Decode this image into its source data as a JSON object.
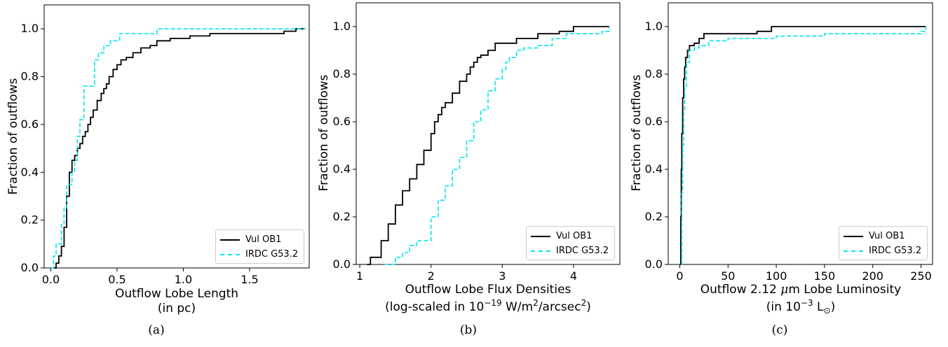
{
  "chart_data": [
    {
      "type": "line",
      "panel": "(a)",
      "xlabel_line1": "Outflow Lobe Length",
      "xlabel_line2": "(in pc)",
      "ylabel": "Fraction of outflows",
      "xlim": [
        -0.05,
        1.95
      ],
      "ylim": [
        0,
        1.1
      ],
      "xticks": [
        0.0,
        0.5,
        1.0,
        1.5
      ],
      "xtick_labels": [
        "0.0",
        "0.5",
        "1.0",
        "1.5"
      ],
      "yticks": [
        0.0,
        0.2,
        0.4,
        0.6,
        0.8,
        1.0
      ],
      "ytick_labels": [
        "0.0",
        "0.2",
        "0.4",
        "0.6",
        "0.8",
        "1.0"
      ],
      "legend_position": "lower-right",
      "series": [
        {
          "name": "Vul OB1",
          "color": "#000000",
          "style": "solid",
          "x": [
            0.02,
            0.04,
            0.06,
            0.08,
            0.1,
            0.12,
            0.14,
            0.16,
            0.18,
            0.2,
            0.22,
            0.24,
            0.26,
            0.28,
            0.3,
            0.32,
            0.35,
            0.38,
            0.4,
            0.42,
            0.44,
            0.47,
            0.5,
            0.53,
            0.57,
            0.62,
            0.68,
            0.75,
            0.8,
            0.9,
            1.0,
            1.05,
            1.2,
            1.5,
            1.7,
            1.76,
            1.8,
            1.85,
            1.88,
            1.92
          ],
          "y": [
            0.0,
            0.02,
            0.05,
            0.09,
            0.17,
            0.3,
            0.4,
            0.45,
            0.47,
            0.5,
            0.52,
            0.55,
            0.57,
            0.6,
            0.63,
            0.66,
            0.7,
            0.73,
            0.75,
            0.77,
            0.8,
            0.83,
            0.85,
            0.87,
            0.88,
            0.9,
            0.92,
            0.93,
            0.95,
            0.96,
            0.96,
            0.97,
            0.98,
            0.98,
            0.98,
            0.99,
            0.99,
            1.0,
            1.0,
            1.0
          ]
        },
        {
          "name": "IRDC G53.2",
          "color": "#00e5ee",
          "style": "dashed",
          "x": [
            0.0,
            0.02,
            0.04,
            0.08,
            0.1,
            0.12,
            0.16,
            0.18,
            0.2,
            0.22,
            0.25,
            0.33,
            0.36,
            0.4,
            0.45,
            0.52,
            0.55,
            0.8,
            1.8,
            1.92
          ],
          "y": [
            0.0,
            0.05,
            0.1,
            0.18,
            0.25,
            0.35,
            0.4,
            0.45,
            0.55,
            0.62,
            0.76,
            0.87,
            0.9,
            0.93,
            0.95,
            0.98,
            0.98,
            1.0,
            1.0,
            1.0
          ]
        }
      ]
    },
    {
      "type": "line",
      "panel": "(b)",
      "xlabel_line1": "Outflow Lobe Flux Densities",
      "xlabel_line2_pre": "(log-scaled in 10",
      "xlabel_line2_sup1": "−19",
      "xlabel_line2_mid": " W/m",
      "xlabel_line2_sup2": "2",
      "xlabel_line2_post": "/arcsec",
      "xlabel_line2_sup3": "2",
      "xlabel_line2_end": ")",
      "ylabel": "Fraction of outflows",
      "xlim": [
        0.95,
        4.65
      ],
      "ylim": [
        0,
        1.1
      ],
      "xticks": [
        1,
        2,
        3,
        4
      ],
      "xtick_labels": [
        "1",
        "2",
        "3",
        "4"
      ],
      "yticks": [
        0.0,
        0.2,
        0.4,
        0.6,
        0.8,
        1.0
      ],
      "ytick_labels": [
        "0.0",
        "0.2",
        "0.4",
        "0.6",
        "0.8",
        "1.0"
      ],
      "legend_position": "lower-right",
      "series": [
        {
          "name": "Vul OB1",
          "color": "#000000",
          "style": "solid",
          "x": [
            1.1,
            1.15,
            1.3,
            1.4,
            1.5,
            1.6,
            1.7,
            1.8,
            1.9,
            2.0,
            2.05,
            2.1,
            2.15,
            2.2,
            2.3,
            2.4,
            2.5,
            2.55,
            2.6,
            2.65,
            2.7,
            2.8,
            2.9,
            3.1,
            3.2,
            3.3,
            3.5,
            3.65,
            3.8,
            4.0,
            4.5
          ],
          "y": [
            0.0,
            0.03,
            0.1,
            0.17,
            0.25,
            0.31,
            0.36,
            0.42,
            0.48,
            0.55,
            0.6,
            0.63,
            0.66,
            0.68,
            0.72,
            0.77,
            0.8,
            0.83,
            0.85,
            0.87,
            0.88,
            0.9,
            0.93,
            0.93,
            0.95,
            0.95,
            0.97,
            0.97,
            0.98,
            1.0,
            1.0
          ]
        },
        {
          "name": "IRDC G53.2",
          "color": "#00e5ee",
          "style": "dashed",
          "x": [
            1.35,
            1.5,
            1.6,
            1.7,
            1.8,
            2.0,
            2.1,
            2.2,
            2.3,
            2.4,
            2.5,
            2.6,
            2.7,
            2.8,
            2.9,
            3.0,
            3.05,
            3.1,
            3.2,
            3.3,
            3.5,
            3.7,
            3.9,
            4.0,
            4.4,
            4.5
          ],
          "y": [
            0.0,
            0.03,
            0.05,
            0.08,
            0.1,
            0.2,
            0.27,
            0.33,
            0.4,
            0.45,
            0.52,
            0.6,
            0.65,
            0.73,
            0.78,
            0.82,
            0.85,
            0.87,
            0.9,
            0.91,
            0.92,
            0.95,
            0.97,
            0.97,
            0.98,
            1.0
          ]
        }
      ]
    },
    {
      "type": "line",
      "panel": "(c)",
      "xlabel_line1_pre": "Outflow 2.12 ",
      "xlabel_line1_mu": "μ",
      "xlabel_line1_post": "m Lobe Luminosity",
      "xlabel_line2_pre": "(in 10",
      "xlabel_line2_sup": "−3",
      "xlabel_line2_post": " L",
      "xlabel_line2_sub": "⊙",
      "xlabel_line2_end": ")",
      "ylabel": "Fraction of outflows",
      "xlim": [
        -12,
        262
      ],
      "ylim": [
        0,
        1.1
      ],
      "xticks": [
        0,
        50,
        100,
        150,
        200,
        250
      ],
      "xtick_labels": [
        "0",
        "50",
        "100",
        "150",
        "200",
        "250"
      ],
      "yticks": [
        0.0,
        0.2,
        0.4,
        0.6,
        0.8,
        1.0
      ],
      "ytick_labels": [
        "0.0",
        "0.2",
        "0.4",
        "0.6",
        "0.8",
        "1.0"
      ],
      "legend_position": "lower-right",
      "series": [
        {
          "name": "Vul OB1",
          "color": "#000000",
          "style": "solid",
          "x": [
            0.5,
            1,
            1.5,
            2,
            3,
            4,
            5,
            6,
            8,
            10,
            15,
            20,
            25,
            40,
            60,
            80,
            90,
            95,
            100,
            250,
            255
          ],
          "y": [
            0.0,
            0.2,
            0.4,
            0.55,
            0.7,
            0.78,
            0.83,
            0.87,
            0.9,
            0.92,
            0.93,
            0.95,
            0.97,
            0.97,
            0.97,
            0.98,
            0.98,
            1.0,
            1.0,
            1.0,
            1.0
          ]
        },
        {
          "name": "IRDC G53.2",
          "color": "#00e5ee",
          "style": "dashed",
          "x": [
            1.5,
            2,
            3,
            4,
            5,
            7,
            10,
            15,
            20,
            30,
            50,
            100,
            150,
            245,
            250,
            255
          ],
          "y": [
            0.0,
            0.3,
            0.5,
            0.65,
            0.75,
            0.85,
            0.9,
            0.91,
            0.92,
            0.94,
            0.95,
            0.96,
            0.97,
            0.97,
            0.98,
            1.0
          ]
        }
      ]
    }
  ]
}
